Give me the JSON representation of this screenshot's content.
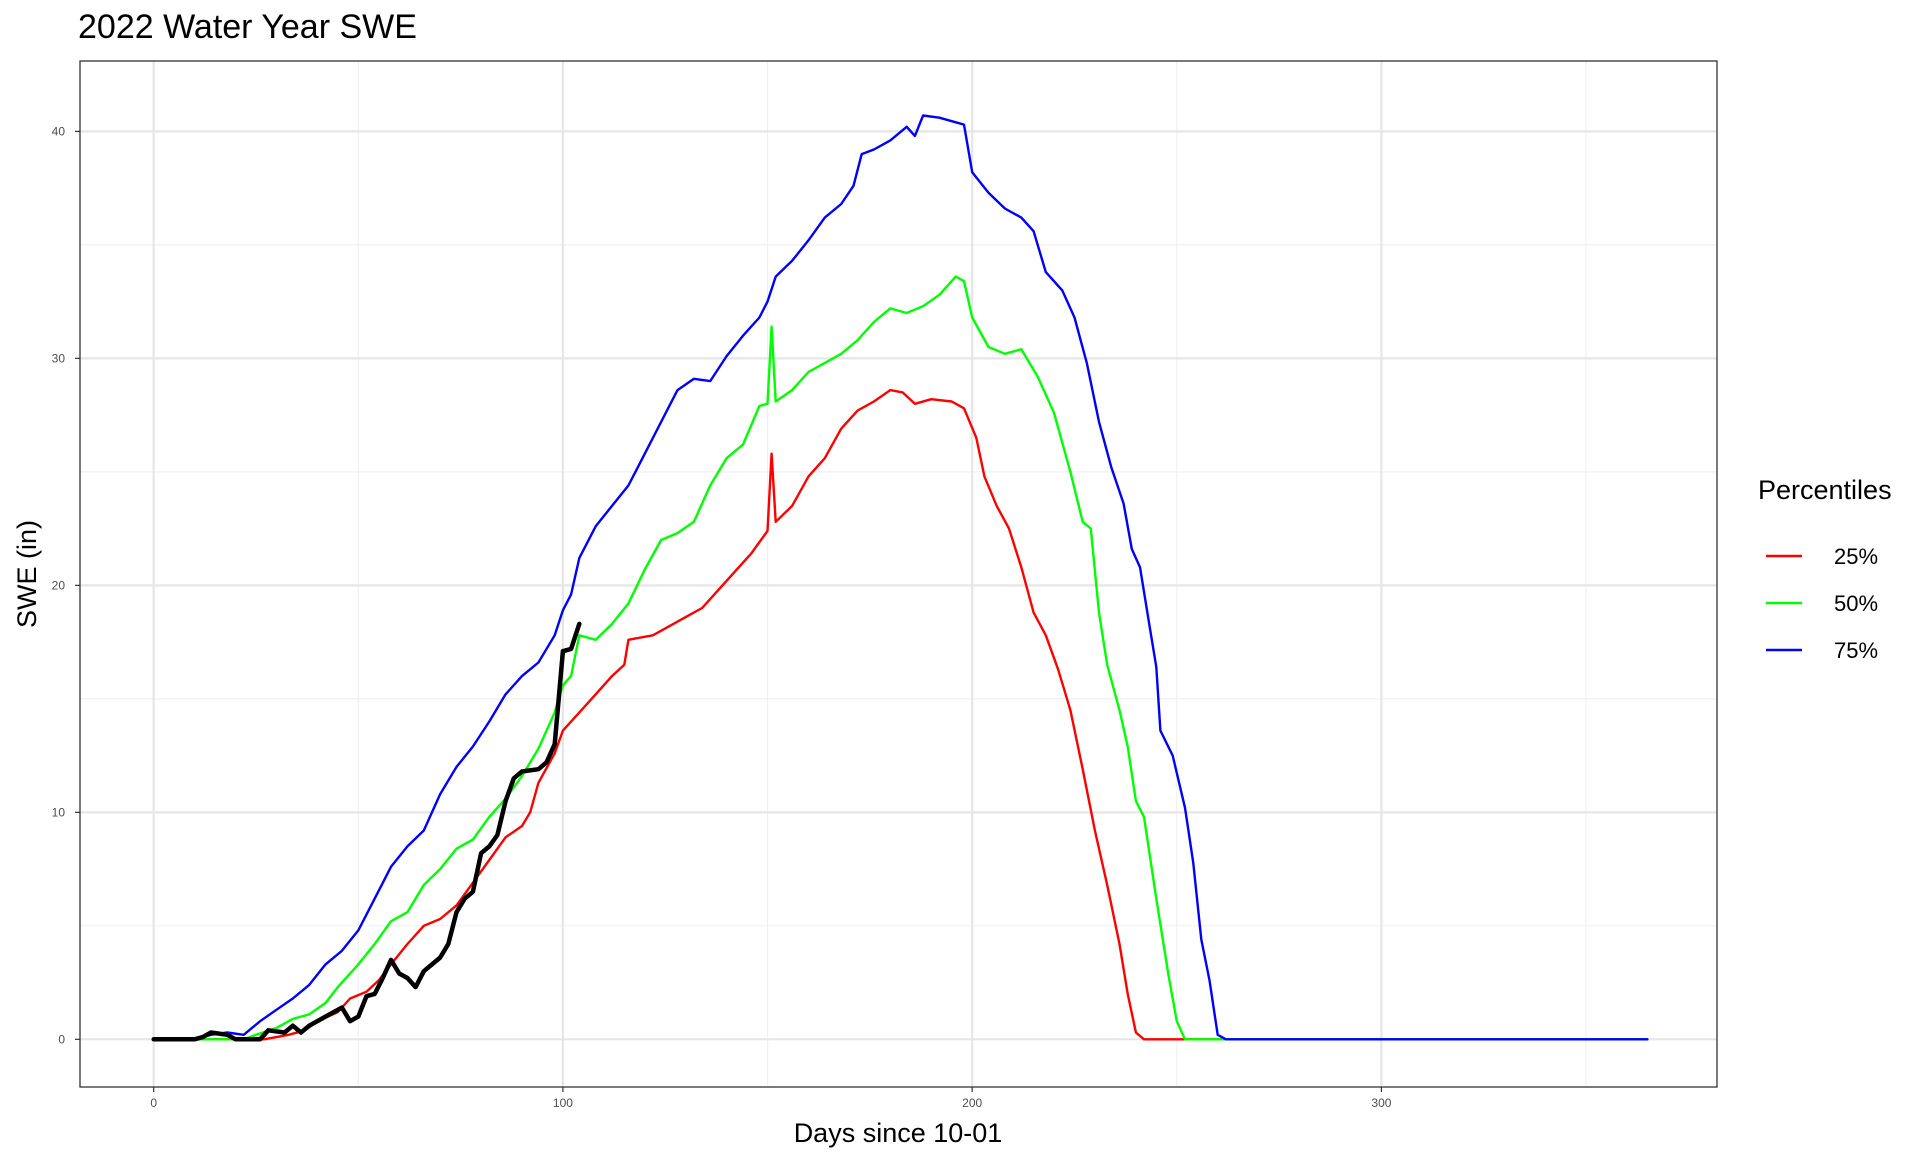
{
  "chart_data": {
    "type": "line",
    "title": "2022 Water Year SWE",
    "xlabel": "Days since 10-01",
    "ylabel": "SWE (in)",
    "xlim": [
      -18,
      382
    ],
    "ylim": [
      -2.1,
      43.1
    ],
    "x_ticks": [
      0,
      100,
      200,
      300
    ],
    "y_ticks": [
      0,
      10,
      20,
      30,
      40
    ],
    "grid": true,
    "legend": {
      "title": "Percentiles",
      "position": "right"
    },
    "series": [
      {
        "name": "25%",
        "color": "#ff0000",
        "points": [
          [
            0,
            0
          ],
          [
            27,
            0
          ],
          [
            30,
            0.1
          ],
          [
            33,
            0.2
          ],
          [
            37,
            0.4
          ],
          [
            40,
            0.8
          ],
          [
            45,
            1.2
          ],
          [
            48,
            1.8
          ],
          [
            52,
            2.1
          ],
          [
            55,
            2.6
          ],
          [
            58,
            3.3
          ],
          [
            62,
            4.2
          ],
          [
            66,
            5.0
          ],
          [
            70,
            5.3
          ],
          [
            74,
            5.9
          ],
          [
            78,
            6.9
          ],
          [
            82,
            7.9
          ],
          [
            86,
            8.9
          ],
          [
            90,
            9.4
          ],
          [
            92,
            10.0
          ],
          [
            94,
            11.3
          ],
          [
            98,
            12.6
          ],
          [
            100,
            13.6
          ],
          [
            104,
            14.4
          ],
          [
            108,
            15.2
          ],
          [
            112,
            16.0
          ],
          [
            115,
            16.5
          ],
          [
            116,
            17.6
          ],
          [
            122,
            17.8
          ],
          [
            126,
            18.2
          ],
          [
            130,
            18.6
          ],
          [
            134,
            19.0
          ],
          [
            138,
            19.8
          ],
          [
            142,
            20.6
          ],
          [
            146,
            21.4
          ],
          [
            150,
            22.4
          ],
          [
            151,
            25.8
          ],
          [
            152,
            22.8
          ],
          [
            156,
            23.5
          ],
          [
            160,
            24.8
          ],
          [
            164,
            25.6
          ],
          [
            168,
            26.9
          ],
          [
            172,
            27.7
          ],
          [
            176,
            28.1
          ],
          [
            180,
            28.6
          ],
          [
            183,
            28.5
          ],
          [
            186,
            28.0
          ],
          [
            190,
            28.2
          ],
          [
            195,
            28.1
          ],
          [
            198,
            27.8
          ],
          [
            201,
            26.5
          ],
          [
            203,
            24.8
          ],
          [
            206,
            23.5
          ],
          [
            209,
            22.5
          ],
          [
            212,
            20.8
          ],
          [
            215,
            18.8
          ],
          [
            218,
            17.8
          ],
          [
            221,
            16.3
          ],
          [
            224,
            14.5
          ],
          [
            227,
            11.9
          ],
          [
            230,
            9.2
          ],
          [
            233,
            6.8
          ],
          [
            236,
            4.2
          ],
          [
            238,
            2.0
          ],
          [
            240,
            0.3
          ],
          [
            242,
            0
          ],
          [
            365,
            0
          ]
        ]
      },
      {
        "name": "50%",
        "color": "#00ff00",
        "points": [
          [
            0,
            0
          ],
          [
            17,
            0
          ],
          [
            22,
            0
          ],
          [
            25,
            0.2
          ],
          [
            30,
            0.5
          ],
          [
            34,
            0.9
          ],
          [
            38,
            1.1
          ],
          [
            42,
            1.6
          ],
          [
            45,
            2.3
          ],
          [
            50,
            3.3
          ],
          [
            54,
            4.2
          ],
          [
            58,
            5.2
          ],
          [
            62,
            5.6
          ],
          [
            66,
            6.8
          ],
          [
            70,
            7.5
          ],
          [
            74,
            8.4
          ],
          [
            78,
            8.8
          ],
          [
            82,
            9.8
          ],
          [
            86,
            10.6
          ],
          [
            90,
            11.6
          ],
          [
            94,
            12.8
          ],
          [
            98,
            14.4
          ],
          [
            100,
            15.6
          ],
          [
            102,
            16.0
          ],
          [
            104,
            17.8
          ],
          [
            108,
            17.6
          ],
          [
            112,
            18.3
          ],
          [
            116,
            19.2
          ],
          [
            120,
            20.7
          ],
          [
            124,
            22.0
          ],
          [
            128,
            22.3
          ],
          [
            132,
            22.8
          ],
          [
            136,
            24.4
          ],
          [
            140,
            25.6
          ],
          [
            144,
            26.2
          ],
          [
            148,
            27.9
          ],
          [
            150,
            28.0
          ],
          [
            151,
            31.4
          ],
          [
            152,
            28.1
          ],
          [
            156,
            28.6
          ],
          [
            160,
            29.4
          ],
          [
            164,
            29.8
          ],
          [
            168,
            30.2
          ],
          [
            172,
            30.8
          ],
          [
            176,
            31.6
          ],
          [
            180,
            32.2
          ],
          [
            184,
            32.0
          ],
          [
            188,
            32.3
          ],
          [
            192,
            32.8
          ],
          [
            196,
            33.6
          ],
          [
            198,
            33.4
          ],
          [
            200,
            31.8
          ],
          [
            204,
            30.5
          ],
          [
            208,
            30.2
          ],
          [
            212,
            30.4
          ],
          [
            216,
            29.2
          ],
          [
            220,
            27.6
          ],
          [
            224,
            25.0
          ],
          [
            227,
            22.8
          ],
          [
            229,
            22.5
          ],
          [
            231,
            18.8
          ],
          [
            233,
            16.5
          ],
          [
            236,
            14.5
          ],
          [
            238,
            12.9
          ],
          [
            240,
            10.5
          ],
          [
            242,
            9.8
          ],
          [
            245,
            6.2
          ],
          [
            248,
            2.8
          ],
          [
            250,
            0.8
          ],
          [
            252,
            0
          ],
          [
            365,
            0
          ]
        ]
      },
      {
        "name": "75%",
        "color": "#0000ff",
        "points": [
          [
            0,
            0
          ],
          [
            10,
            0
          ],
          [
            14,
            0.2
          ],
          [
            18,
            0.3
          ],
          [
            22,
            0.2
          ],
          [
            26,
            0.8
          ],
          [
            30,
            1.3
          ],
          [
            34,
            1.8
          ],
          [
            38,
            2.4
          ],
          [
            42,
            3.3
          ],
          [
            46,
            3.9
          ],
          [
            50,
            4.8
          ],
          [
            54,
            6.2
          ],
          [
            58,
            7.6
          ],
          [
            62,
            8.5
          ],
          [
            66,
            9.2
          ],
          [
            70,
            10.8
          ],
          [
            74,
            12.0
          ],
          [
            78,
            12.9
          ],
          [
            82,
            14.0
          ],
          [
            86,
            15.2
          ],
          [
            90,
            16.0
          ],
          [
            94,
            16.6
          ],
          [
            98,
            17.8
          ],
          [
            100,
            18.9
          ],
          [
            102,
            19.6
          ],
          [
            104,
            21.2
          ],
          [
            108,
            22.6
          ],
          [
            112,
            23.5
          ],
          [
            116,
            24.4
          ],
          [
            120,
            25.8
          ],
          [
            124,
            27.2
          ],
          [
            128,
            28.6
          ],
          [
            132,
            29.1
          ],
          [
            136,
            29.0
          ],
          [
            140,
            30.1
          ],
          [
            144,
            31.0
          ],
          [
            148,
            31.8
          ],
          [
            150,
            32.5
          ],
          [
            152,
            33.6
          ],
          [
            156,
            34.3
          ],
          [
            160,
            35.2
          ],
          [
            164,
            36.2
          ],
          [
            168,
            36.8
          ],
          [
            171,
            37.6
          ],
          [
            173,
            39.0
          ],
          [
            176,
            39.2
          ],
          [
            180,
            39.6
          ],
          [
            184,
            40.2
          ],
          [
            186,
            39.8
          ],
          [
            188,
            40.7
          ],
          [
            192,
            40.6
          ],
          [
            196,
            40.4
          ],
          [
            198,
            40.3
          ],
          [
            200,
            38.2
          ],
          [
            204,
            37.3
          ],
          [
            208,
            36.6
          ],
          [
            212,
            36.2
          ],
          [
            215,
            35.6
          ],
          [
            218,
            33.8
          ],
          [
            222,
            33.0
          ],
          [
            225,
            31.8
          ],
          [
            228,
            29.8
          ],
          [
            231,
            27.2
          ],
          [
            234,
            25.2
          ],
          [
            237,
            23.6
          ],
          [
            239,
            21.6
          ],
          [
            241,
            20.8
          ],
          [
            243,
            18.6
          ],
          [
            245,
            16.4
          ],
          [
            246,
            13.6
          ],
          [
            249,
            12.5
          ],
          [
            252,
            10.2
          ],
          [
            254,
            7.8
          ],
          [
            256,
            4.4
          ],
          [
            258,
            2.6
          ],
          [
            260,
            0.2
          ],
          [
            262,
            0
          ],
          [
            365,
            0
          ]
        ]
      },
      {
        "color": "#000000",
        "points": [
          [
            0,
            0
          ],
          [
            10,
            0
          ],
          [
            12,
            0.1
          ],
          [
            14,
            0.3
          ],
          [
            18,
            0.2
          ],
          [
            20,
            0
          ],
          [
            26,
            0
          ],
          [
            28,
            0.4
          ],
          [
            32,
            0.3
          ],
          [
            34,
            0.6
          ],
          [
            36,
            0.3
          ],
          [
            38,
            0.6
          ],
          [
            42,
            1.0
          ],
          [
            46,
            1.4
          ],
          [
            48,
            0.8
          ],
          [
            50,
            1.0
          ],
          [
            52,
            1.9
          ],
          [
            54,
            2.0
          ],
          [
            56,
            2.7
          ],
          [
            58,
            3.5
          ],
          [
            60,
            2.9
          ],
          [
            62,
            2.7
          ],
          [
            64,
            2.3
          ],
          [
            66,
            3.0
          ],
          [
            68,
            3.3
          ],
          [
            70,
            3.6
          ],
          [
            72,
            4.2
          ],
          [
            74,
            5.6
          ],
          [
            76,
            6.2
          ],
          [
            78,
            6.5
          ],
          [
            80,
            8.2
          ],
          [
            82,
            8.5
          ],
          [
            84,
            9.0
          ],
          [
            86,
            10.5
          ],
          [
            88,
            11.5
          ],
          [
            90,
            11.8
          ],
          [
            94,
            11.9
          ],
          [
            96,
            12.2
          ],
          [
            98,
            13.0
          ],
          [
            100,
            17.1
          ],
          [
            102,
            17.2
          ],
          [
            104,
            18.3
          ]
        ]
      }
    ]
  }
}
